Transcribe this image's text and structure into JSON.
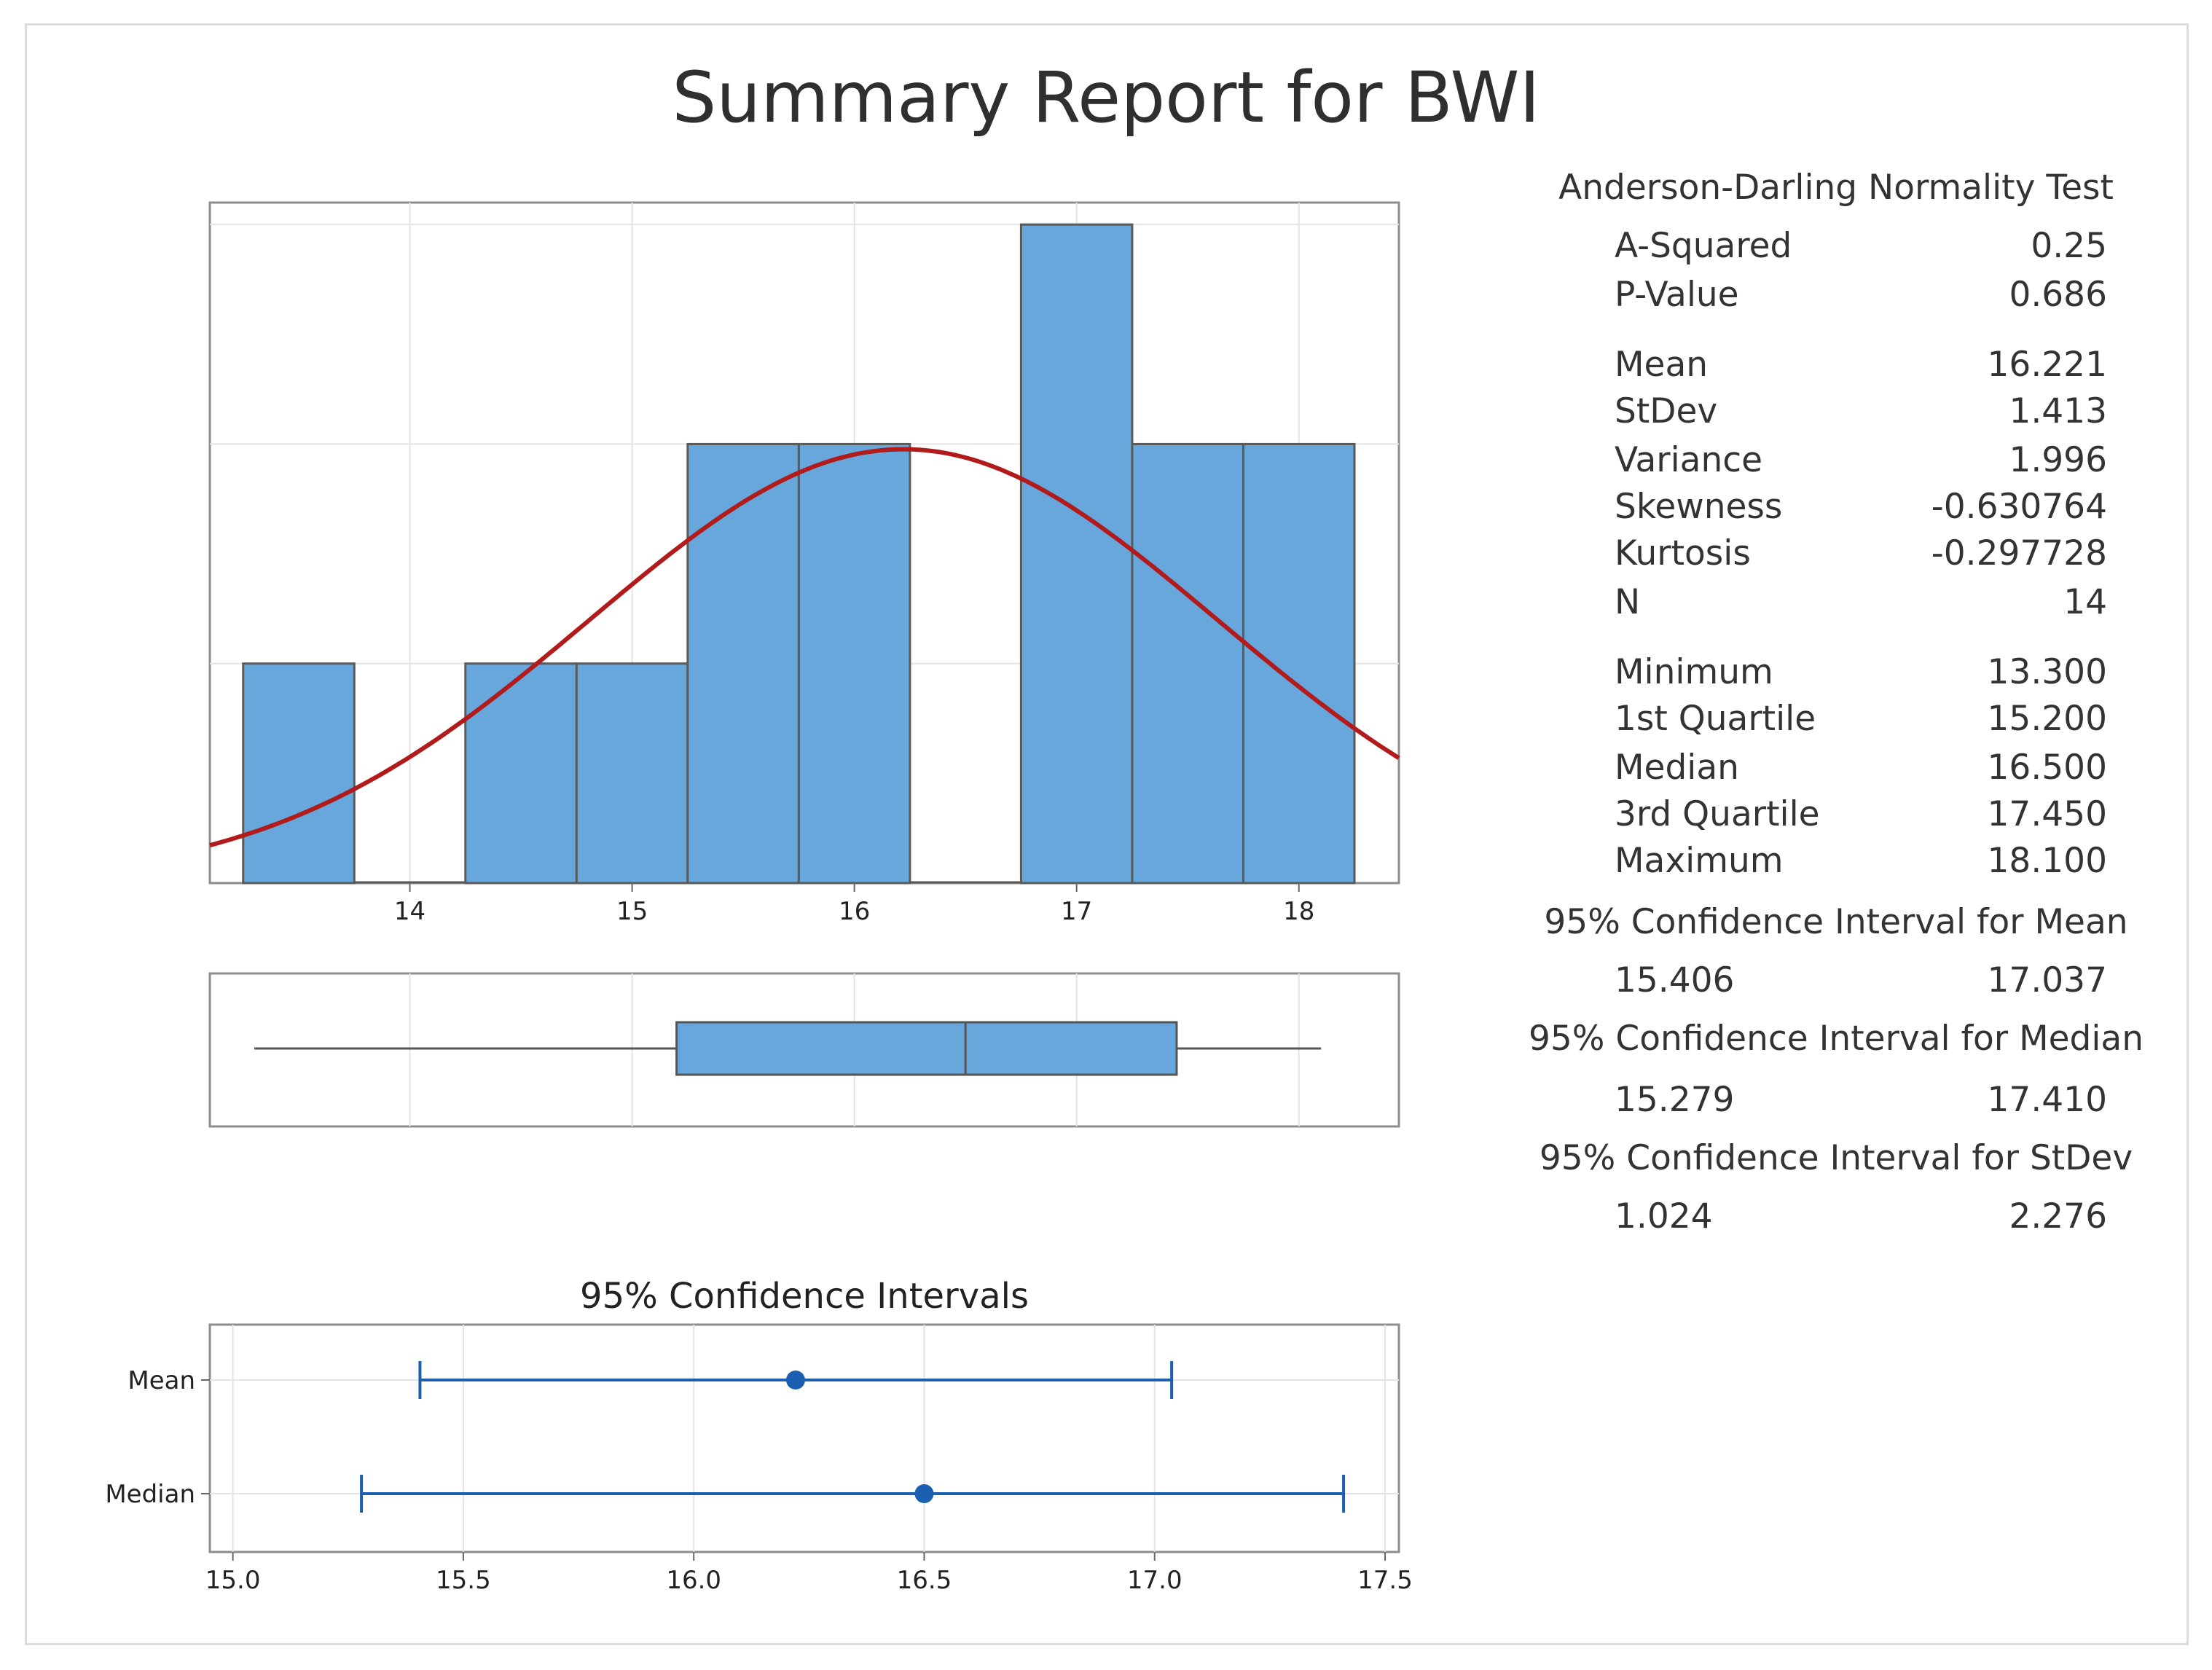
{
  "title": "Summary Report for BWI",
  "chart_data": [
    {
      "type": "bar",
      "name": "histogram",
      "bins": [
        {
          "lo": 13.25,
          "hi": 13.75,
          "count": 1
        },
        {
          "lo": 13.75,
          "hi": 14.25,
          "count": 0
        },
        {
          "lo": 14.25,
          "hi": 14.75,
          "count": 1
        },
        {
          "lo": 14.75,
          "hi": 15.25,
          "count": 1
        },
        {
          "lo": 15.25,
          "hi": 15.75,
          "count": 2
        },
        {
          "lo": 15.75,
          "hi": 16.25,
          "count": 2
        },
        {
          "lo": 16.25,
          "hi": 16.75,
          "count": 0
        },
        {
          "lo": 16.75,
          "hi": 17.25,
          "count": 3
        },
        {
          "lo": 17.25,
          "hi": 17.75,
          "count": 2
        },
        {
          "lo": 17.75,
          "hi": 18.25,
          "count": 2
        }
      ],
      "xlim": [
        13.1,
        18.45
      ],
      "ylim": [
        0,
        3.1
      ],
      "x_ticks": [
        "14",
        "15",
        "16",
        "17",
        "18"
      ],
      "normal_fit": {
        "mean": 16.221,
        "stdev": 1.413,
        "n": 14,
        "bin_width": 0.5
      }
    },
    {
      "type": "boxplot",
      "name": "boxplot",
      "min": 13.3,
      "q1": 15.2,
      "median": 16.5,
      "q3": 17.45,
      "max": 18.1
    },
    {
      "type": "scatter",
      "name": "confidence-intervals",
      "title": "95% Confidence Intervals",
      "xlim": [
        14.95,
        17.53
      ],
      "x_ticks": [
        "15.0",
        "15.5",
        "16.0",
        "16.5",
        "17.0",
        "17.5"
      ],
      "intervals": [
        {
          "label": "Mean",
          "estimate": 16.221,
          "lower": 15.406,
          "upper": 17.037
        },
        {
          "label": "Median",
          "estimate": 16.5,
          "lower": 15.279,
          "upper": 17.41
        }
      ]
    }
  ],
  "stats": {
    "ad_title": "Anderson-Darling Normality Test",
    "a_squared_label": "A-Squared",
    "a_squared": "0.25",
    "p_value_label": "P-Value",
    "p_value": "0.686",
    "mean_label": "Mean",
    "mean": "16.221",
    "stdev_label": "StDev",
    "stdev": "1.413",
    "variance_label": "Variance",
    "variance": "1.996",
    "skewness_label": "Skewness",
    "skewness": "-0.630764",
    "kurtosis_label": "Kurtosis",
    "kurtosis": "-0.297728",
    "n_label": "N",
    "n": "14",
    "minimum_label": "Minimum",
    "minimum": "13.300",
    "q1_label": "1st Quartile",
    "q1": "15.200",
    "median_label": "Median",
    "median": "16.500",
    "q3_label": "3rd Quartile",
    "q3": "17.450",
    "maximum_label": "Maximum",
    "maximum": "18.100",
    "ci_mean_title": "95% Confidence Interval for Mean",
    "ci_mean_lower": "15.406",
    "ci_mean_upper": "17.037",
    "ci_median_title": "95% Confidence Interval for Median",
    "ci_median_lower": "15.279",
    "ci_median_upper": "17.410",
    "ci_stdev_title": "95% Confidence Interval for StDev",
    "ci_stdev_lower": "1.024",
    "ci_stdev_upper": "2.276"
  },
  "colors": {
    "bar_fill": "#67a7dc",
    "bar_edge": "#5a5a5a",
    "curve": "#b11b1b",
    "ci": "#1a5fb0",
    "grid": "#e4e4e4",
    "frame": "#8c8c8c"
  }
}
